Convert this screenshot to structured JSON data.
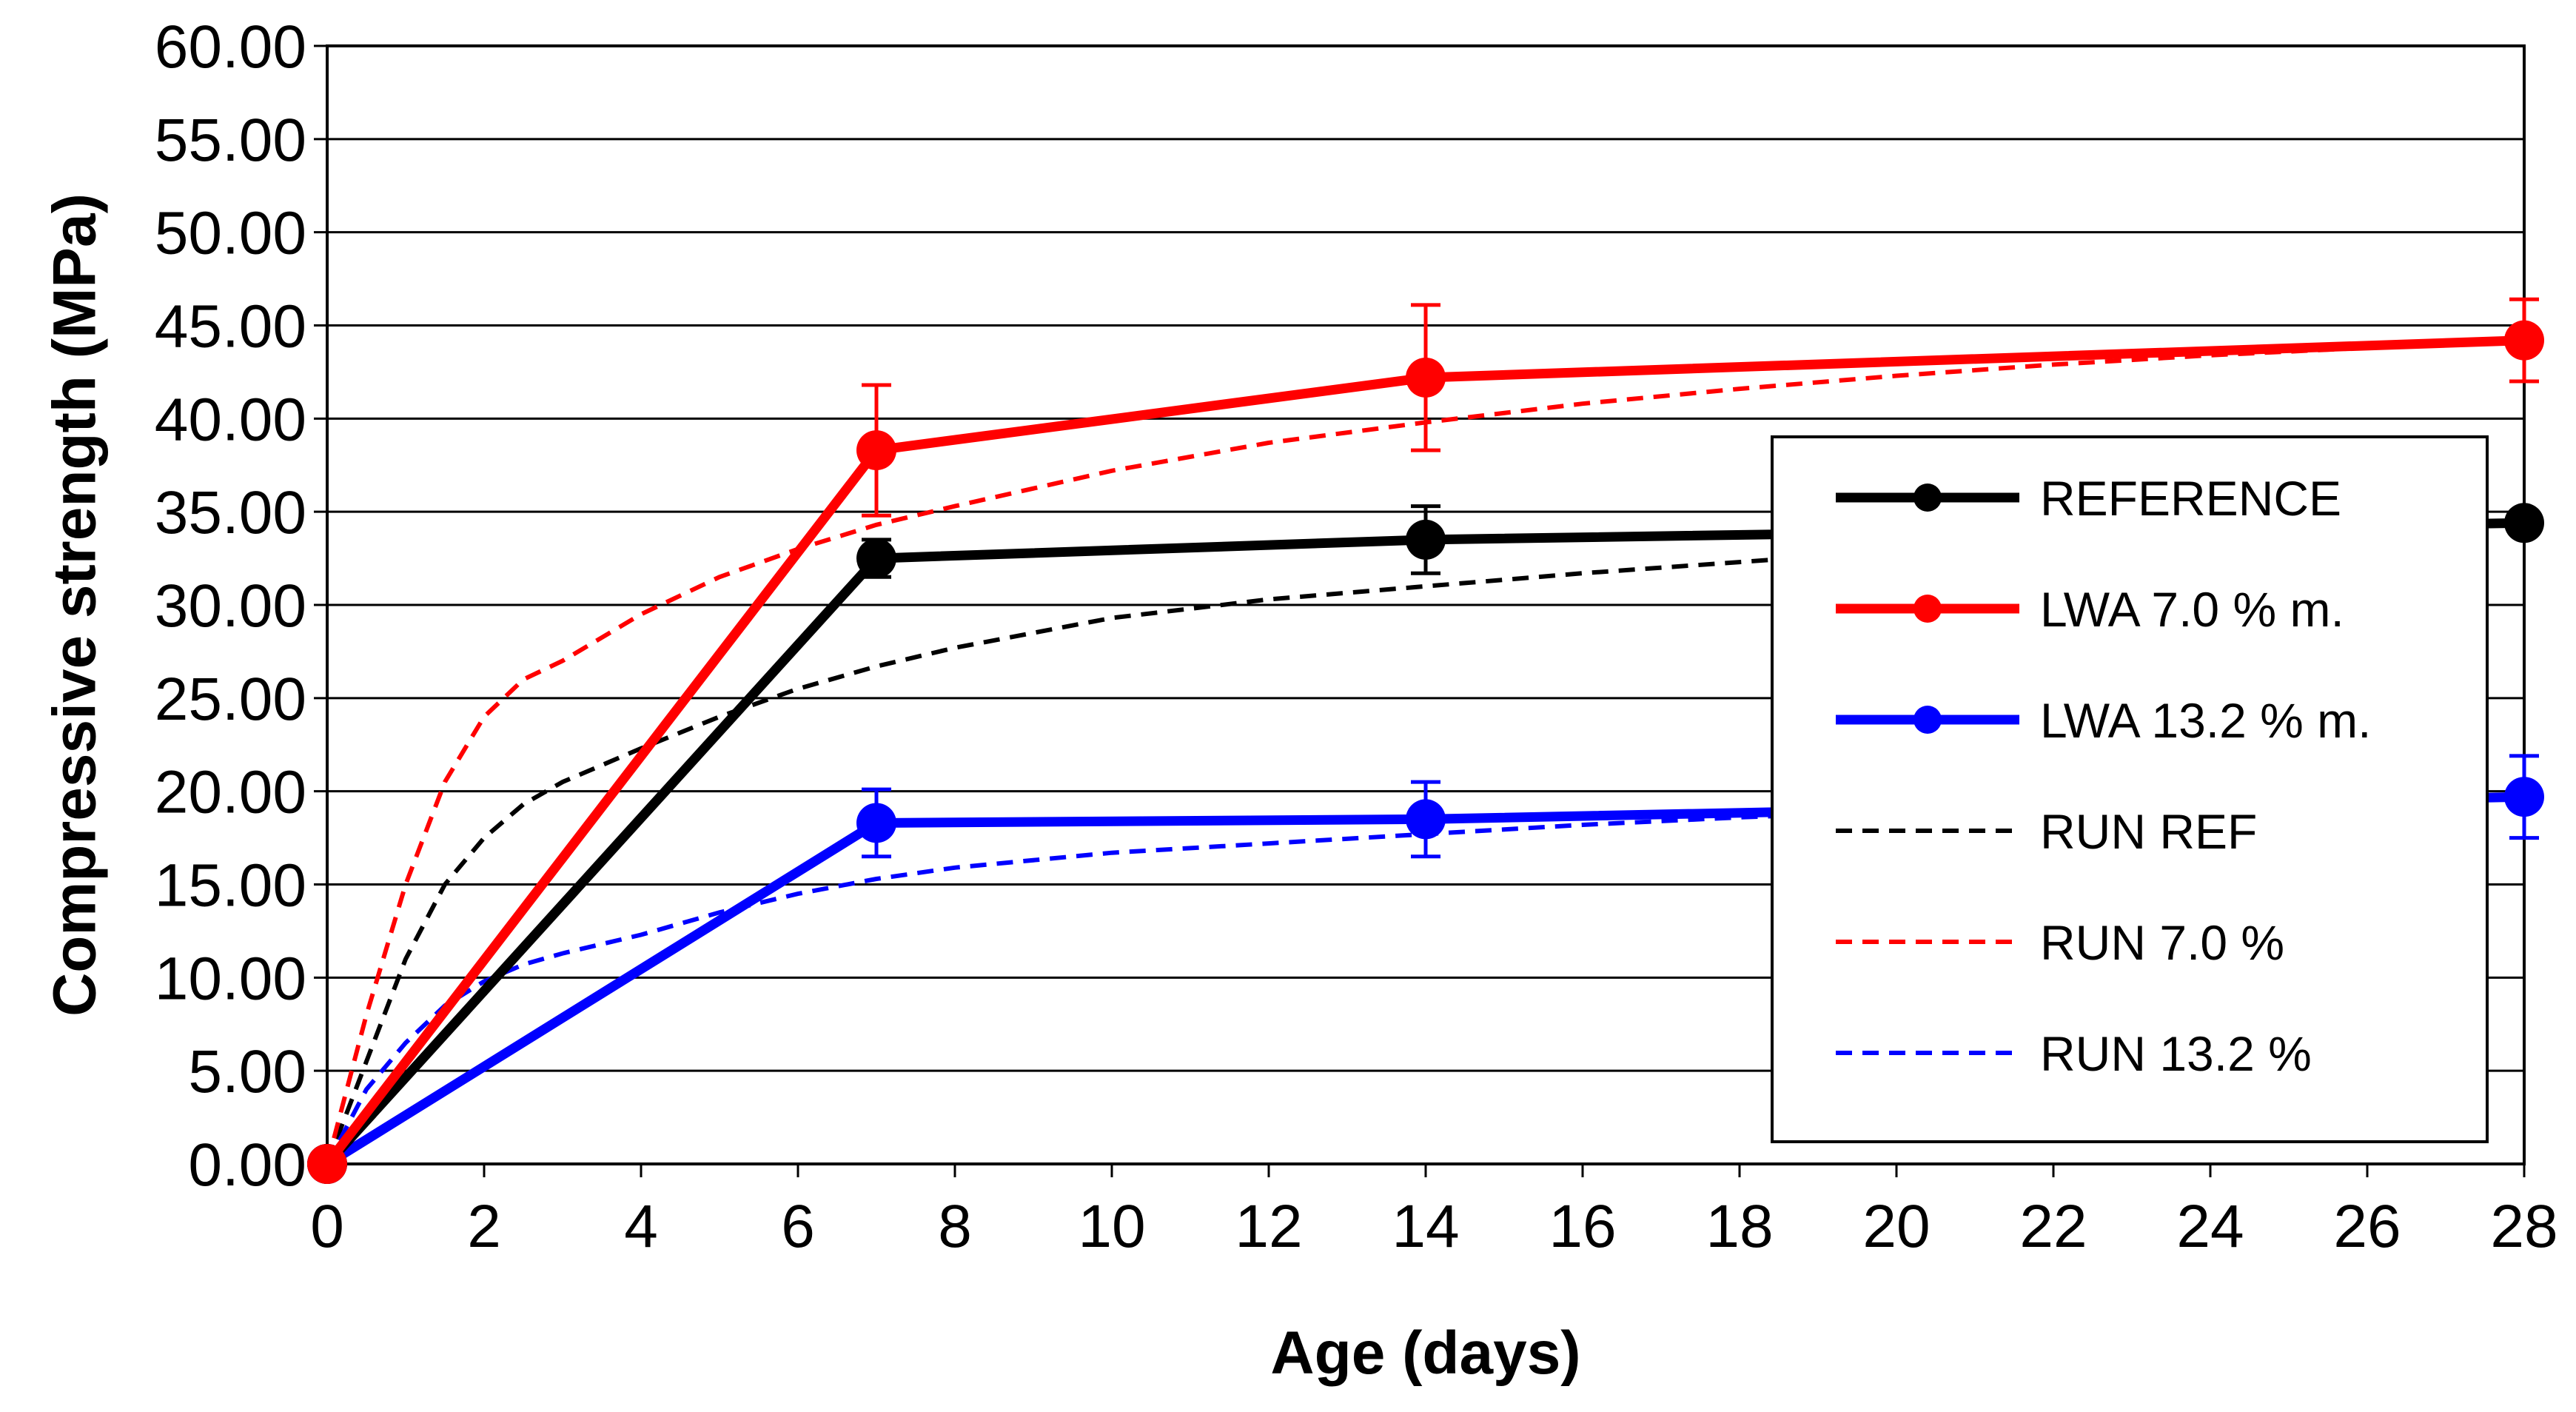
{
  "chart_data": {
    "type": "line",
    "title": "",
    "xlabel": "Age (days)",
    "ylabel": "Compressive strength (MPa)",
    "xlim": [
      0,
      28
    ],
    "ylim": [
      0,
      60
    ],
    "x_ticks": [
      "0",
      "2",
      "4",
      "6",
      "8",
      "10",
      "12",
      "14",
      "16",
      "18",
      "20",
      "22",
      "24",
      "26",
      "28"
    ],
    "y_ticks": [
      "0.00",
      "5.00",
      "10.00",
      "15.00",
      "20.00",
      "25.00",
      "30.00",
      "35.00",
      "40.00",
      "45.00",
      "50.00",
      "55.00",
      "60.00"
    ],
    "grid": "horizontal",
    "legend_position": "right",
    "series": [
      {
        "name": "REFERENCE",
        "style": "solid-marker",
        "color": "#000000",
        "x": [
          0,
          7,
          14,
          28
        ],
        "y": [
          0.0,
          32.5,
          33.5,
          34.4
        ],
        "error": [
          0,
          1.0,
          1.8,
          0
        ]
      },
      {
        "name": "LWA 7.0 % m.",
        "style": "solid-marker",
        "color": "#ff0000",
        "x": [
          0,
          7,
          14,
          28
        ],
        "y": [
          0.0,
          38.3,
          42.2,
          44.2
        ],
        "error": [
          0,
          3.5,
          3.9,
          2.2
        ]
      },
      {
        "name": "LWA 13.2 % m.",
        "style": "solid-marker",
        "color": "#0000ff",
        "x": [
          0,
          7,
          14,
          28
        ],
        "y": [
          0.0,
          18.3,
          18.5,
          19.7
        ],
        "error": [
          0,
          1.8,
          2.0,
          2.2
        ]
      },
      {
        "name": "RUN REF",
        "style": "dashed",
        "color": "#000000",
        "x": [
          0,
          0.5,
          1,
          1.5,
          2,
          2.5,
          3,
          4,
          5,
          6,
          7,
          8,
          10,
          12,
          14,
          16,
          18,
          20,
          22,
          24,
          26,
          28
        ],
        "y": [
          0,
          5.5,
          11.0,
          15.0,
          17.5,
          19.3,
          20.5,
          22.3,
          24.0,
          25.5,
          26.7,
          27.7,
          29.3,
          30.3,
          31.0,
          31.7,
          32.3,
          32.9,
          33.4,
          33.8,
          34.1,
          34.4
        ]
      },
      {
        "name": "RUN 7.0 %",
        "style": "dashed",
        "color": "#ff0000",
        "x": [
          0,
          0.5,
          1,
          1.5,
          2,
          2.5,
          3,
          4,
          5,
          6,
          7,
          8,
          10,
          12,
          14,
          16,
          18,
          20,
          22,
          24,
          26,
          28
        ],
        "y": [
          0,
          8.0,
          15.0,
          20.5,
          24.0,
          26.0,
          27.0,
          29.5,
          31.5,
          33.0,
          34.3,
          35.3,
          37.2,
          38.7,
          39.8,
          40.8,
          41.6,
          42.3,
          42.9,
          43.4,
          43.8,
          44.2
        ]
      },
      {
        "name": "RUN 13.2 %",
        "style": "dashed",
        "color": "#0000ff",
        "x": [
          0,
          0.5,
          1,
          1.5,
          2,
          2.5,
          3,
          4,
          5,
          6,
          7,
          8,
          10,
          12,
          14,
          16,
          18,
          20,
          22,
          24,
          26,
          28
        ],
        "y": [
          0,
          4.0,
          6.5,
          8.5,
          9.8,
          10.7,
          11.3,
          12.3,
          13.5,
          14.5,
          15.3,
          15.9,
          16.7,
          17.2,
          17.7,
          18.2,
          18.6,
          18.9,
          19.1,
          19.3,
          19.5,
          19.7
        ]
      }
    ]
  }
}
